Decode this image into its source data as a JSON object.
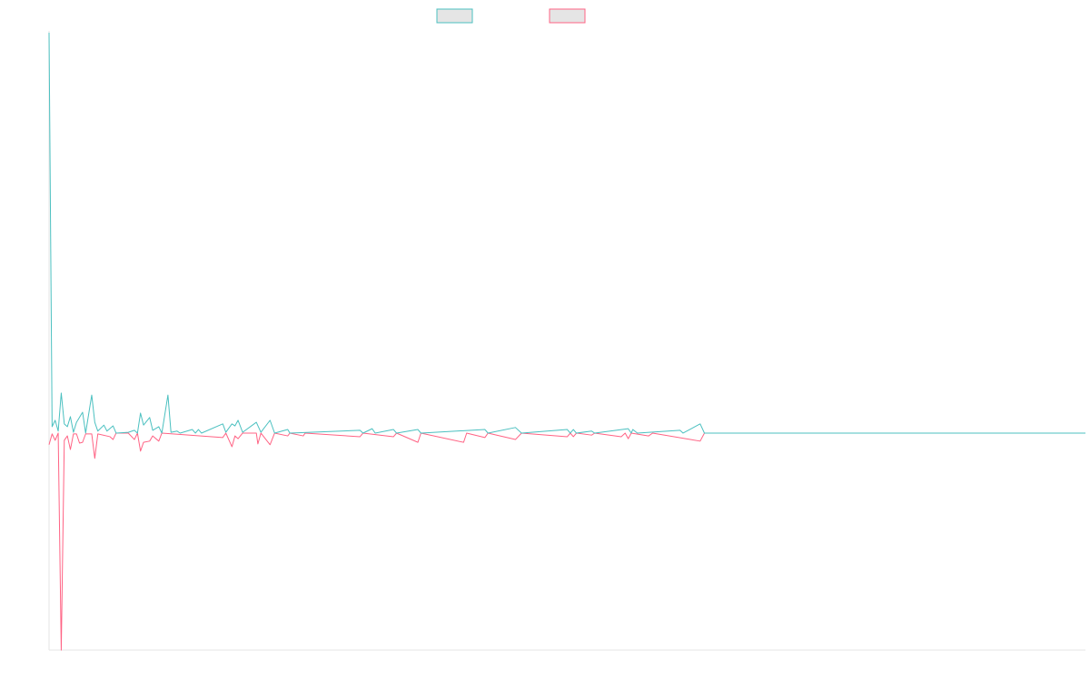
{
  "chart_data": {
    "type": "line",
    "legend": "top",
    "grid": false,
    "xlim": [
      0,
      340
    ],
    "ylim": [
      -0.542,
      1
    ],
    "series": [
      {
        "color": "#ff6384",
        "x": [
          0,
          1,
          2,
          3,
          4,
          5,
          6,
          7,
          8,
          9,
          10,
          11,
          12,
          14,
          15,
          16,
          20,
          21,
          22,
          26,
          28,
          29,
          30,
          31,
          33,
          34,
          36,
          37,
          57,
          58,
          60,
          61,
          62,
          63.5,
          68,
          68.5,
          69.5,
          72.5,
          74,
          78.3,
          79,
          83.4,
          84,
          102,
          103,
          113,
          114,
          121,
          122,
          136,
          137,
          143,
          144,
          153,
          155,
          170,
          171,
          172,
          173,
          178,
          179,
          187.7,
          189,
          190,
          191,
          196.7,
          198,
          213.6,
          215,
          219
        ],
        "values": [
          -0.029,
          -0.002,
          -0.018,
          0,
          -0.542,
          -0.018,
          -0.007,
          -0.041,
          -0.002,
          -0.002,
          -0.025,
          -0.023,
          -0.002,
          -0.002,
          -0.063,
          -0.002,
          -0.009,
          -0.016,
          0,
          0,
          -0.016,
          0,
          -0.045,
          -0.023,
          -0.02,
          -0.007,
          -0.02,
          0,
          -0.011,
          0,
          -0.034,
          -0.007,
          -0.014,
          0,
          0,
          -0.027,
          0,
          -0.029,
          0,
          -0.007,
          0,
          -0.007,
          0,
          -0.009,
          0,
          -0.009,
          0,
          -0.023,
          0,
          -0.023,
          0,
          -0.011,
          0,
          -0.016,
          0,
          -0.009,
          0,
          -0.009,
          0,
          -0.005,
          0,
          -0.009,
          0,
          -0.014,
          0,
          -0.007,
          0,
          -0.02,
          0,
          0
        ]
      },
      {
        "color": "#4bc0c0",
        "x": [
          0,
          1,
          2,
          3,
          4,
          5,
          6,
          7,
          8,
          9,
          11,
          12,
          14,
          15,
          16,
          18,
          19,
          21,
          22,
          26,
          28,
          29,
          30,
          31,
          33,
          34,
          36,
          37,
          39,
          40,
          42,
          43,
          47,
          48,
          49,
          50,
          57,
          58,
          60,
          61,
          62,
          63.5,
          68,
          69.5,
          72.5,
          74,
          78.3,
          79,
          102,
          103,
          106,
          107,
          113,
          114,
          121,
          122,
          143,
          144,
          153,
          155,
          170,
          171,
          172,
          173,
          178,
          179,
          190,
          191,
          191.5,
          193,
          207,
          208,
          213.6,
          215,
          340
        ],
        "values": [
          1,
          0.016,
          0.032,
          0.005,
          0.1,
          0.023,
          0.016,
          0.041,
          0.002,
          0.027,
          0.052,
          0,
          0.095,
          0.027,
          0.005,
          0.02,
          0.005,
          0.018,
          0,
          0.002,
          0.007,
          0,
          0.05,
          0.02,
          0.039,
          0.007,
          0.016,
          0,
          0.095,
          0.002,
          0.005,
          0,
          0.009,
          0,
          0.009,
          0,
          0.023,
          0.002,
          0.023,
          0.018,
          0.032,
          0.002,
          0.027,
          0.002,
          0.032,
          0,
          0.009,
          0,
          0.007,
          0,
          0.011,
          0,
          0.009,
          0,
          0.009,
          0,
          0.009,
          0,
          0.014,
          0,
          0.009,
          0,
          0.009,
          0,
          0.005,
          0,
          0.011,
          0,
          0.009,
          0,
          0.007,
          0,
          0.023,
          0,
          0
        ]
      }
    ]
  }
}
